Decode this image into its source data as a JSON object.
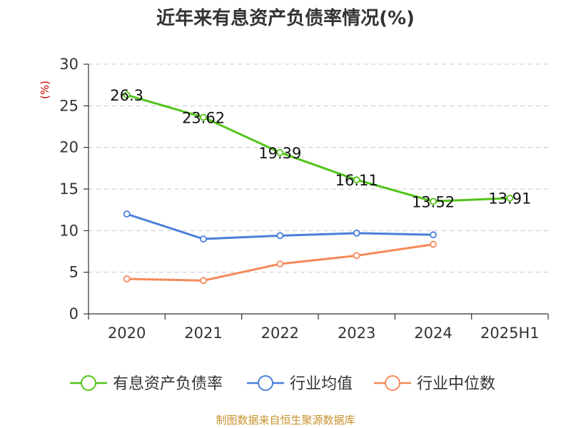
{
  "chart_data": {
    "type": "line",
    "title": "近年来有息资产负债率情况(%)",
    "ylabel": "(%)",
    "categories": [
      "2020",
      "2021",
      "2022",
      "2023",
      "2024",
      "2025H1"
    ],
    "ylim": [
      0,
      30
    ],
    "yticks": [
      "0",
      "5",
      "10",
      "15",
      "20",
      "25",
      "30"
    ],
    "grid": true,
    "legend_position": "bottom",
    "series": [
      {
        "name": "有息资产负债率",
        "color": "#52c41a",
        "values": [
          26.3,
          23.62,
          19.39,
          16.11,
          13.52,
          13.91
        ],
        "labels": [
          "26.3",
          "23.62",
          "19.39",
          "16.11",
          "13.52",
          "13.91"
        ]
      },
      {
        "name": "行业均值",
        "color": "#4a7fdb",
        "values": [
          12.0,
          9.0,
          9.4,
          9.7,
          9.5,
          null
        ]
      },
      {
        "name": "行业中位数",
        "color": "#f5895a",
        "values": [
          4.2,
          4.0,
          6.0,
          7.0,
          8.35,
          null
        ]
      }
    ],
    "source": "制图数据来自恒生聚源数据库",
    "source_color": "#c8912c"
  }
}
